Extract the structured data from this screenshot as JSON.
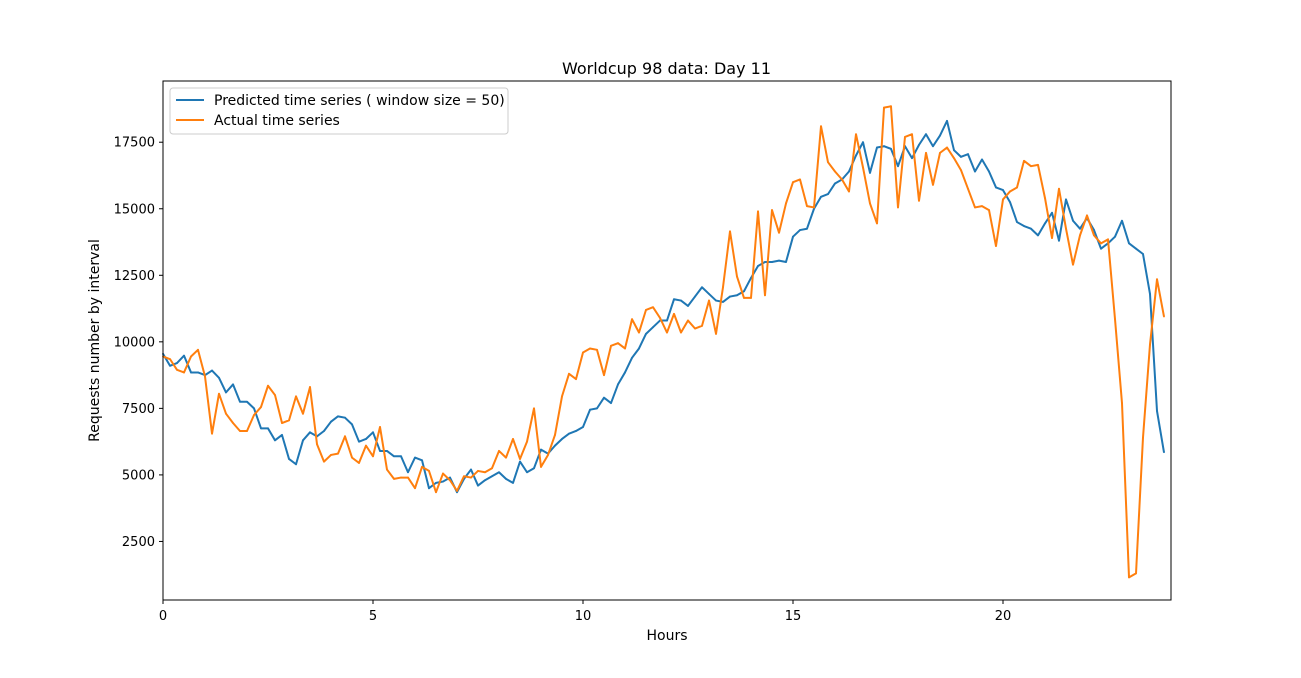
{
  "chart_data": {
    "type": "line",
    "title": "Worldcup 98 data: Day 11",
    "xlabel": "Hours",
    "ylabel": "Requests number by interval",
    "xlim": [
      0,
      24
    ],
    "ylim": [
      300,
      19800
    ],
    "xticks": [
      0,
      5,
      10,
      15,
      20
    ],
    "yticks": [
      2500,
      5000,
      7500,
      10000,
      12500,
      15000,
      17500
    ],
    "legend_position": "top-left",
    "grid": false,
    "series": [
      {
        "name": "Predicted time series ( window size = 50)",
        "color": "#1f77b4",
        "points": [
          [
            0.0,
            9550
          ],
          [
            0.167,
            9100
          ],
          [
            0.333,
            9200
          ],
          [
            0.5,
            9480
          ],
          [
            0.667,
            8850
          ],
          [
            0.833,
            8850
          ],
          [
            1.0,
            8750
          ],
          [
            1.167,
            8920
          ],
          [
            1.333,
            8650
          ],
          [
            1.5,
            8100
          ],
          [
            1.667,
            8400
          ],
          [
            1.833,
            7750
          ],
          [
            2.0,
            7750
          ],
          [
            2.167,
            7500
          ],
          [
            2.333,
            6750
          ],
          [
            2.5,
            6750
          ],
          [
            2.667,
            6300
          ],
          [
            2.833,
            6500
          ],
          [
            3.0,
            5600
          ],
          [
            3.167,
            5400
          ],
          [
            3.333,
            6300
          ],
          [
            3.5,
            6600
          ],
          [
            3.667,
            6450
          ],
          [
            3.833,
            6650
          ],
          [
            4.0,
            7000
          ],
          [
            4.167,
            7200
          ],
          [
            4.333,
            7150
          ],
          [
            4.5,
            6900
          ],
          [
            4.667,
            6250
          ],
          [
            4.833,
            6350
          ],
          [
            5.0,
            6600
          ],
          [
            5.167,
            5900
          ],
          [
            5.333,
            5900
          ],
          [
            5.5,
            5700
          ],
          [
            5.667,
            5700
          ],
          [
            5.833,
            5100
          ],
          [
            6.0,
            5650
          ],
          [
            6.167,
            5550
          ],
          [
            6.333,
            4500
          ],
          [
            6.5,
            4700
          ],
          [
            6.667,
            4750
          ],
          [
            6.833,
            4900
          ],
          [
            7.0,
            4350
          ],
          [
            7.167,
            4850
          ],
          [
            7.333,
            5200
          ],
          [
            7.5,
            4600
          ],
          [
            7.667,
            4800
          ],
          [
            7.833,
            4950
          ],
          [
            8.0,
            5100
          ],
          [
            8.167,
            4850
          ],
          [
            8.333,
            4700
          ],
          [
            8.5,
            5500
          ],
          [
            8.667,
            5100
          ],
          [
            8.833,
            5250
          ],
          [
            9.0,
            5950
          ],
          [
            9.167,
            5800
          ],
          [
            9.333,
            6100
          ],
          [
            9.5,
            6350
          ],
          [
            9.667,
            6550
          ],
          [
            9.833,
            6650
          ],
          [
            10.0,
            6800
          ],
          [
            10.167,
            7450
          ],
          [
            10.333,
            7500
          ],
          [
            10.5,
            7900
          ],
          [
            10.667,
            7700
          ],
          [
            10.833,
            8400
          ],
          [
            11.0,
            8850
          ],
          [
            11.167,
            9400
          ],
          [
            11.333,
            9750
          ],
          [
            11.5,
            10300
          ],
          [
            11.667,
            10550
          ],
          [
            11.833,
            10800
          ],
          [
            12.0,
            10800
          ],
          [
            12.167,
            11600
          ],
          [
            12.333,
            11550
          ],
          [
            12.5,
            11350
          ],
          [
            12.667,
            11700
          ],
          [
            12.833,
            12050
          ],
          [
            13.0,
            11800
          ],
          [
            13.167,
            11550
          ],
          [
            13.333,
            11500
          ],
          [
            13.5,
            11700
          ],
          [
            13.667,
            11750
          ],
          [
            13.833,
            11900
          ],
          [
            14.0,
            12400
          ],
          [
            14.167,
            12850
          ],
          [
            14.333,
            13000
          ],
          [
            14.5,
            13000
          ],
          [
            14.667,
            13050
          ],
          [
            14.833,
            13000
          ],
          [
            15.0,
            13950
          ],
          [
            15.167,
            14200
          ],
          [
            15.333,
            14250
          ],
          [
            15.5,
            15000
          ],
          [
            15.667,
            15450
          ],
          [
            15.833,
            15550
          ],
          [
            16.0,
            15950
          ],
          [
            16.167,
            16100
          ],
          [
            16.333,
            16400
          ],
          [
            16.5,
            17000
          ],
          [
            16.667,
            17500
          ],
          [
            16.833,
            16350
          ],
          [
            17.0,
            17300
          ],
          [
            17.167,
            17350
          ],
          [
            17.333,
            17250
          ],
          [
            17.5,
            16600
          ],
          [
            17.667,
            17350
          ],
          [
            17.833,
            16900
          ],
          [
            18.0,
            17400
          ],
          [
            18.167,
            17800
          ],
          [
            18.333,
            17350
          ],
          [
            18.5,
            17750
          ],
          [
            18.667,
            18300
          ],
          [
            18.833,
            17200
          ],
          [
            19.0,
            16950
          ],
          [
            19.167,
            17050
          ],
          [
            19.333,
            16400
          ],
          [
            19.5,
            16850
          ],
          [
            19.667,
            16400
          ],
          [
            19.833,
            15800
          ],
          [
            20.0,
            15700
          ],
          [
            20.167,
            15250
          ],
          [
            20.333,
            14500
          ],
          [
            20.5,
            14350
          ],
          [
            20.667,
            14250
          ],
          [
            20.833,
            14000
          ],
          [
            21.0,
            14450
          ],
          [
            21.167,
            14850
          ],
          [
            21.333,
            13800
          ],
          [
            21.5,
            15350
          ],
          [
            21.667,
            14550
          ],
          [
            21.833,
            14250
          ],
          [
            22.0,
            14650
          ],
          [
            22.167,
            14200
          ],
          [
            22.333,
            13500
          ],
          [
            22.5,
            13700
          ],
          [
            22.667,
            13950
          ],
          [
            22.833,
            14550
          ],
          [
            23.0,
            13700
          ],
          [
            23.167,
            13500
          ],
          [
            23.333,
            13300
          ],
          [
            23.5,
            11800
          ],
          [
            23.667,
            7400
          ],
          [
            23.833,
            5850
          ]
        ]
      },
      {
        "name": "Actual time series",
        "color": "#ff7f0e",
        "points": [
          [
            0.0,
            9450
          ],
          [
            0.167,
            9350
          ],
          [
            0.333,
            8950
          ],
          [
            0.5,
            8850
          ],
          [
            0.667,
            9450
          ],
          [
            0.833,
            9700
          ],
          [
            1.0,
            8700
          ],
          [
            1.167,
            6550
          ],
          [
            1.333,
            8050
          ],
          [
            1.5,
            7300
          ],
          [
            1.667,
            6950
          ],
          [
            1.833,
            6650
          ],
          [
            2.0,
            6650
          ],
          [
            2.167,
            7250
          ],
          [
            2.333,
            7550
          ],
          [
            2.5,
            8350
          ],
          [
            2.667,
            8000
          ],
          [
            2.833,
            6950
          ],
          [
            3.0,
            7050
          ],
          [
            3.167,
            7950
          ],
          [
            3.333,
            7300
          ],
          [
            3.5,
            8300
          ],
          [
            3.667,
            6150
          ],
          [
            3.833,
            5500
          ],
          [
            4.0,
            5750
          ],
          [
            4.167,
            5800
          ],
          [
            4.333,
            6450
          ],
          [
            4.5,
            5650
          ],
          [
            4.667,
            5450
          ],
          [
            4.833,
            6100
          ],
          [
            5.0,
            5700
          ],
          [
            5.167,
            6800
          ],
          [
            5.333,
            5200
          ],
          [
            5.5,
            4850
          ],
          [
            5.667,
            4900
          ],
          [
            5.833,
            4900
          ],
          [
            6.0,
            4500
          ],
          [
            6.167,
            5300
          ],
          [
            6.333,
            5150
          ],
          [
            6.5,
            4350
          ],
          [
            6.667,
            5050
          ],
          [
            6.833,
            4800
          ],
          [
            7.0,
            4400
          ],
          [
            7.167,
            4950
          ],
          [
            7.333,
            4900
          ],
          [
            7.5,
            5150
          ],
          [
            7.667,
            5100
          ],
          [
            7.833,
            5250
          ],
          [
            8.0,
            5900
          ],
          [
            8.167,
            5650
          ],
          [
            8.333,
            6350
          ],
          [
            8.5,
            5600
          ],
          [
            8.667,
            6250
          ],
          [
            8.833,
            7500
          ],
          [
            9.0,
            5300
          ],
          [
            9.167,
            5750
          ],
          [
            9.333,
            6500
          ],
          [
            9.5,
            7950
          ],
          [
            9.667,
            8800
          ],
          [
            9.833,
            8600
          ],
          [
            10.0,
            9600
          ],
          [
            10.167,
            9750
          ],
          [
            10.333,
            9700
          ],
          [
            10.5,
            8750
          ],
          [
            10.667,
            9850
          ],
          [
            10.833,
            9950
          ],
          [
            11.0,
            9750
          ],
          [
            11.167,
            10850
          ],
          [
            11.333,
            10350
          ],
          [
            11.5,
            11200
          ],
          [
            11.667,
            11300
          ],
          [
            11.833,
            10900
          ],
          [
            12.0,
            10350
          ],
          [
            12.167,
            11050
          ],
          [
            12.333,
            10350
          ],
          [
            12.5,
            10800
          ],
          [
            12.667,
            10500
          ],
          [
            12.833,
            10600
          ],
          [
            13.0,
            11550
          ],
          [
            13.167,
            10300
          ],
          [
            13.333,
            12050
          ],
          [
            13.5,
            14150
          ],
          [
            13.667,
            12450
          ],
          [
            13.833,
            11650
          ],
          [
            14.0,
            11650
          ],
          [
            14.167,
            14900
          ],
          [
            14.333,
            11750
          ],
          [
            14.5,
            14950
          ],
          [
            14.667,
            14100
          ],
          [
            14.833,
            15200
          ],
          [
            15.0,
            16000
          ],
          [
            15.167,
            16100
          ],
          [
            15.333,
            15100
          ],
          [
            15.5,
            15050
          ],
          [
            15.667,
            18100
          ],
          [
            15.833,
            16750
          ],
          [
            16.0,
            16400
          ],
          [
            16.167,
            16100
          ],
          [
            16.333,
            15650
          ],
          [
            16.5,
            17800
          ],
          [
            16.667,
            16550
          ],
          [
            16.833,
            15200
          ],
          [
            17.0,
            14450
          ],
          [
            17.167,
            18800
          ],
          [
            17.333,
            18850
          ],
          [
            17.5,
            15050
          ],
          [
            17.667,
            17700
          ],
          [
            17.833,
            17800
          ],
          [
            18.0,
            15300
          ],
          [
            18.167,
            17100
          ],
          [
            18.333,
            15900
          ],
          [
            18.5,
            17100
          ],
          [
            18.667,
            17300
          ],
          [
            18.833,
            16900
          ],
          [
            19.0,
            16450
          ],
          [
            19.167,
            15750
          ],
          [
            19.333,
            15050
          ],
          [
            19.5,
            15100
          ],
          [
            19.667,
            14950
          ],
          [
            19.833,
            13600
          ],
          [
            20.0,
            15350
          ],
          [
            20.167,
            15650
          ],
          [
            20.333,
            15800
          ],
          [
            20.5,
            16800
          ],
          [
            20.667,
            16600
          ],
          [
            20.833,
            16650
          ],
          [
            21.0,
            15400
          ],
          [
            21.167,
            13900
          ],
          [
            21.333,
            15750
          ],
          [
            21.5,
            14250
          ],
          [
            21.667,
            12900
          ],
          [
            21.833,
            14000
          ],
          [
            22.0,
            14750
          ],
          [
            22.167,
            14000
          ],
          [
            22.333,
            13700
          ],
          [
            22.5,
            13850
          ],
          [
            22.667,
            10850
          ],
          [
            22.833,
            7700
          ],
          [
            23.0,
            1150
          ],
          [
            23.167,
            1300
          ],
          [
            23.333,
            6400
          ],
          [
            23.5,
            9900
          ],
          [
            23.667,
            12350
          ],
          [
            23.833,
            10950
          ]
        ]
      }
    ]
  }
}
